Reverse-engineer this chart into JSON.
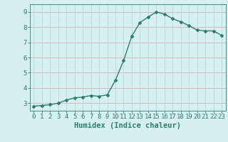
{
  "x": [
    0,
    1,
    2,
    3,
    4,
    5,
    6,
    7,
    8,
    9,
    10,
    11,
    12,
    13,
    14,
    15,
    16,
    17,
    18,
    19,
    20,
    21,
    22,
    23
  ],
  "y": [
    2.8,
    2.85,
    2.9,
    3.0,
    3.2,
    3.35,
    3.4,
    3.5,
    3.45,
    3.55,
    4.5,
    5.8,
    7.4,
    8.3,
    8.65,
    9.0,
    8.85,
    8.55,
    8.35,
    8.1,
    7.8,
    7.75,
    7.75,
    7.45
  ],
  "line_color": "#2e7d6e",
  "marker": "D",
  "marker_size": 2.0,
  "bg_color": "#d6f0f0",
  "grid_color": "#b8d8d8",
  "grid_color_minor": "#e8c8c8",
  "tick_color": "#2e7d6e",
  "xlabel": "Humidex (Indice chaleur)",
  "ylim": [
    2.5,
    9.5
  ],
  "xlim": [
    -0.5,
    23.5
  ],
  "yticks": [
    3,
    4,
    5,
    6,
    7,
    8,
    9
  ],
  "xticks": [
    0,
    1,
    2,
    3,
    4,
    5,
    6,
    7,
    8,
    9,
    10,
    11,
    12,
    13,
    14,
    15,
    16,
    17,
    18,
    19,
    20,
    21,
    22,
    23
  ],
  "xtick_labels": [
    "0",
    "1",
    "2",
    "3",
    "4",
    "5",
    "6",
    "7",
    "8",
    "9",
    "10",
    "11",
    "12",
    "13",
    "14",
    "15",
    "16",
    "17",
    "18",
    "19",
    "20",
    "21",
    "22",
    "23"
  ],
  "font_size": 6.5,
  "label_font_size": 7.5
}
